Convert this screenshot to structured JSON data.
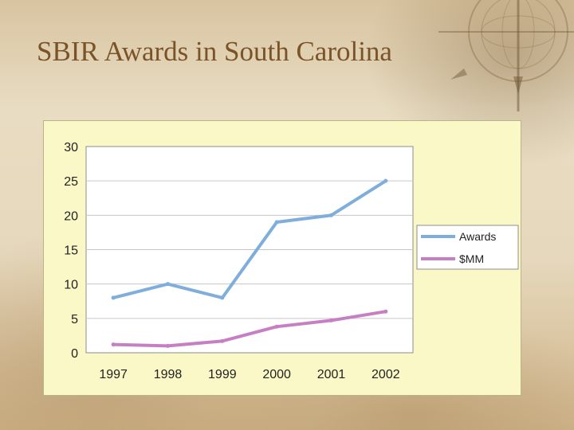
{
  "slide": {
    "title": "SBIR Awards in South Carolina"
  },
  "chart_data": {
    "type": "line",
    "title": "",
    "xlabel": "",
    "ylabel": "",
    "categories": [
      "1997",
      "1998",
      "1999",
      "2000",
      "2001",
      "2002"
    ],
    "ylim": [
      0,
      30
    ],
    "yticks": [
      0,
      5,
      10,
      15,
      20,
      25,
      30
    ],
    "grid": true,
    "legend_position": "right",
    "series": [
      {
        "name": "Awards",
        "color": "#7faedc",
        "values": [
          8,
          10,
          8,
          19,
          20,
          25
        ]
      },
      {
        "name": "$MM",
        "color": "#c77fc3",
        "values": [
          1.2,
          1.0,
          1.7,
          3.8,
          4.7,
          6.0
        ]
      }
    ]
  }
}
